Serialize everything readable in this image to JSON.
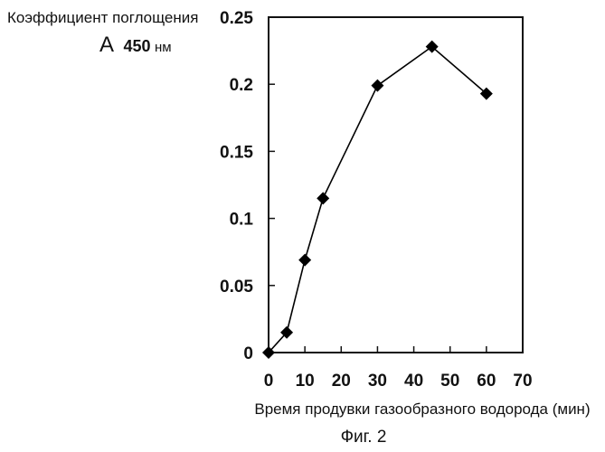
{
  "chart_data": {
    "type": "line",
    "ylabel": "Коэффициент поглощения",
    "ylabel_line2_prefix": "А",
    "ylabel_line2_value": "450",
    "ylabel_line2_unit": "нм",
    "xlabel": "Время продувки газообразного водорода (мин)",
    "caption": "Фиг. 2",
    "xlim": [
      0,
      70
    ],
    "ylim": [
      0,
      0.25
    ],
    "x_ticks": [
      "0",
      "10",
      "20",
      "30",
      "40",
      "50",
      "60",
      "70"
    ],
    "y_ticks": [
      "0",
      "0.05",
      "0.1",
      "0.15",
      "0.2",
      "0.25"
    ],
    "series": [
      {
        "x": [
          0,
          5,
          10,
          15,
          30,
          45,
          60
        ],
        "y": [
          0,
          0.015,
          0.069,
          0.115,
          0.199,
          0.228,
          0.193
        ]
      }
    ],
    "grid": false,
    "legend": "none",
    "marker": "diamond",
    "line_color": "#000000"
  }
}
